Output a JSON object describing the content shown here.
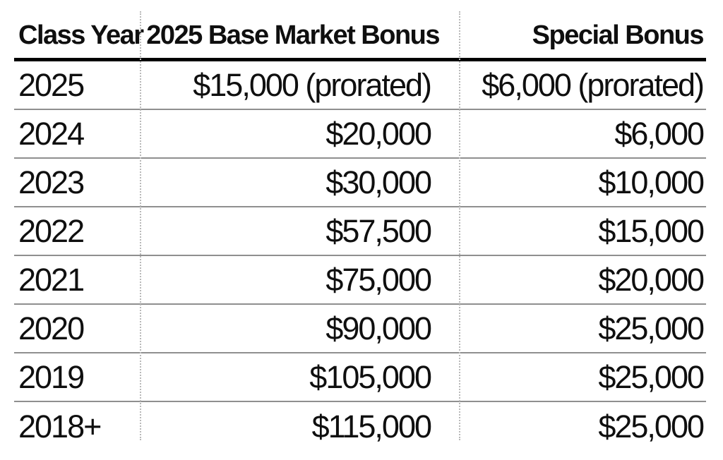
{
  "table": {
    "headers": [
      "Class Year",
      "2025 Base Market Bonus",
      "Special Bonus"
    ],
    "rows": [
      {
        "year": "2025",
        "base": "$15,000 (prorated)",
        "special": "$6,000 (prorated)"
      },
      {
        "year": "2024",
        "base": "$20,000",
        "special": "$6,000"
      },
      {
        "year": "2023",
        "base": "$30,000",
        "special": "$10,000"
      },
      {
        "year": "2022",
        "base": "$57,500",
        "special": "$15,000"
      },
      {
        "year": "2021",
        "base": "$75,000",
        "special": "$20,000"
      },
      {
        "year": "2020",
        "base": "$90,000",
        "special": "$25,000"
      },
      {
        "year": "2019",
        "base": "$105,000",
        "special": "$25,000"
      },
      {
        "year": "2018+",
        "base": "$115,000",
        "special": "$25,000"
      }
    ]
  },
  "chart_data": {
    "type": "table",
    "title": "",
    "columns": [
      "Class Year",
      "2025 Base Market Bonus",
      "Special Bonus"
    ],
    "categories": [
      "2025",
      "2024",
      "2023",
      "2022",
      "2021",
      "2020",
      "2019",
      "2018+"
    ],
    "series": [
      {
        "name": "2025 Base Market Bonus",
        "values": [
          15000,
          20000,
          30000,
          57500,
          75000,
          90000,
          105000,
          115000
        ]
      },
      {
        "name": "Special Bonus",
        "values": [
          6000,
          6000,
          10000,
          15000,
          20000,
          25000,
          25000,
          25000
        ]
      }
    ],
    "annotations": [
      "2025 base and special bonuses are prorated"
    ],
    "layout": {
      "header_rule": "thick solid black",
      "row_rules": "thin gray solid",
      "column_dividers": "dotted gray",
      "value_alignment": "right"
    }
  },
  "colors": {
    "background": "#ffffff",
    "text": "#0f0f0f",
    "header_rule": "#000000",
    "row_rule": "#8f8f8f",
    "column_divider": "#b9b9b9"
  }
}
